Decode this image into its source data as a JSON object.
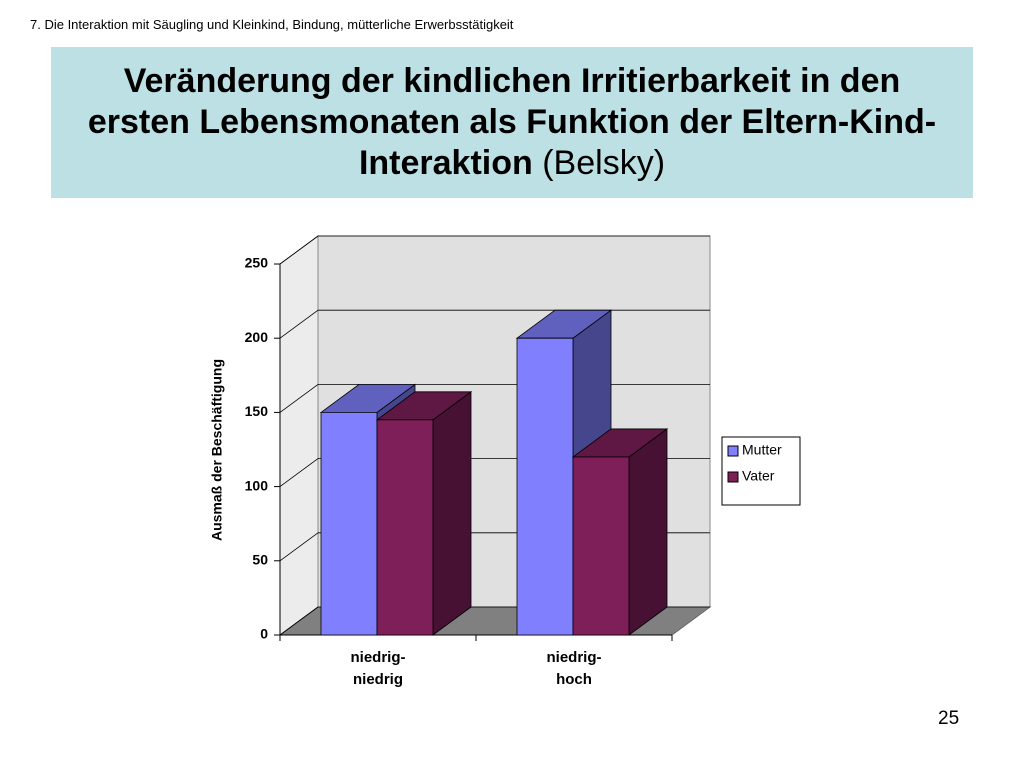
{
  "header": "7. Die Interaktion mit Säugling und Kleinkind, Bindung, mütterliche Erwerbsstätigkeit",
  "page_number": "25",
  "chart_data": {
    "type": "bar3d",
    "title": "Veränderung der kindlichen Irritierbarkeit in den ersten Lebensmonaten als Funktion der Eltern-Kind-Interaktion",
    "title_source": "(Belsky)",
    "y_label": "Ausmaß der Beschäftigung",
    "categories": [
      "niedrig-\nniedrig",
      "niedrig-\nhoch"
    ],
    "series": [
      {
        "name": "Mutter",
        "color": "#8080ff",
        "values": [
          150,
          200
        ]
      },
      {
        "name": "Vater",
        "color": "#7f1f5a",
        "values": [
          145,
          120
        ]
      }
    ],
    "ylim": [
      0,
      250
    ],
    "yticks": [
      0,
      50,
      100,
      150,
      200,
      250
    ],
    "grid": true,
    "legend": "right"
  }
}
